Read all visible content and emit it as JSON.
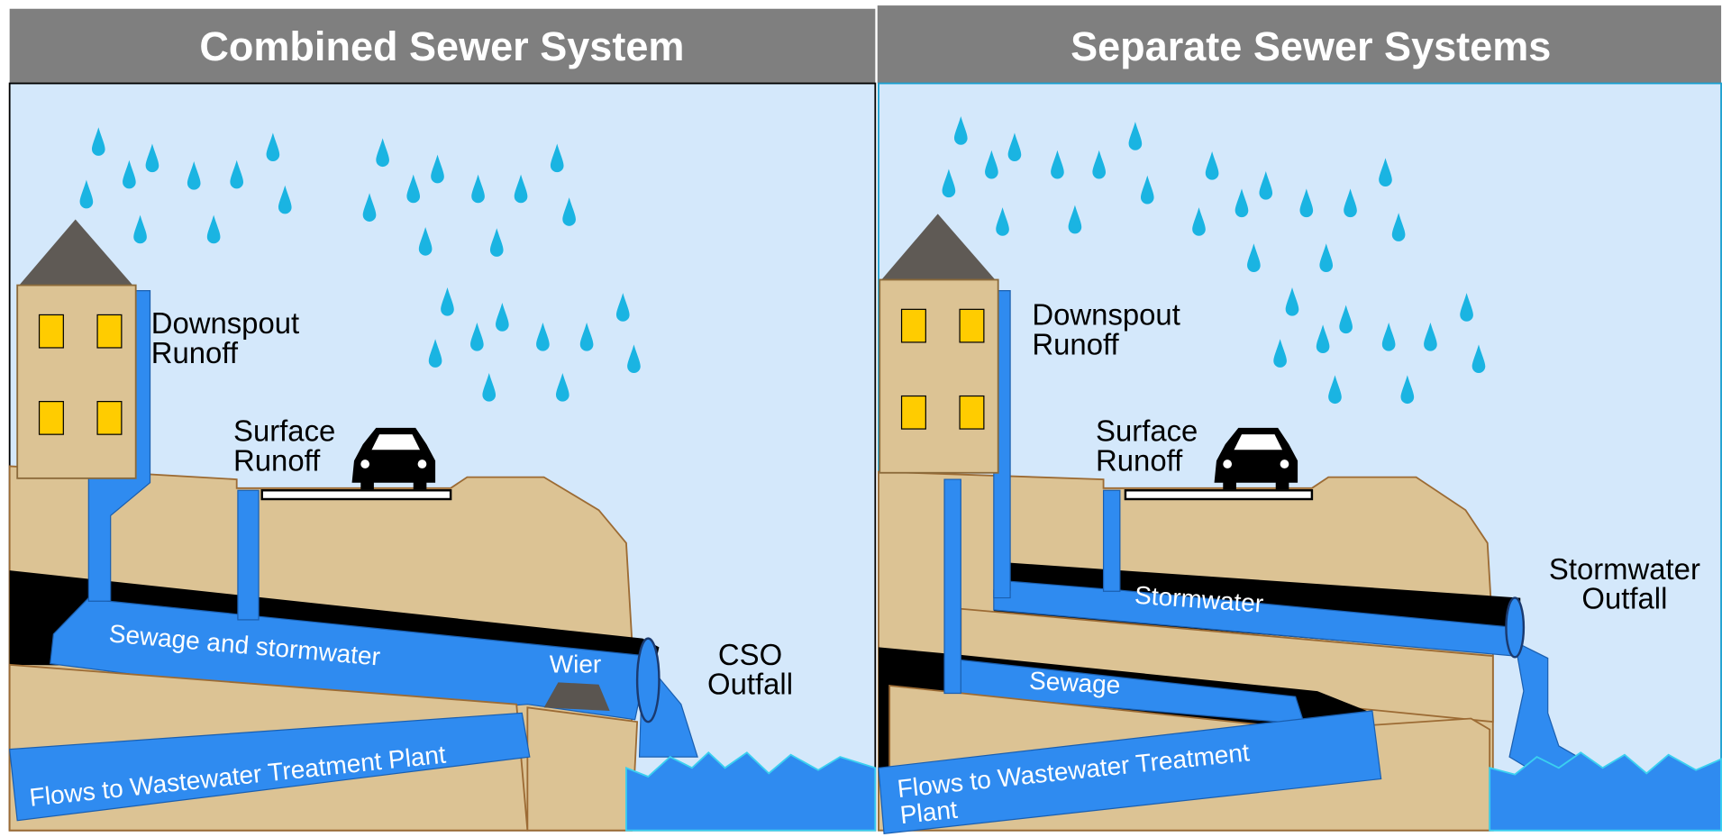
{
  "panels": [
    {
      "title": "Combined Sewer System",
      "labels": {
        "downspout": [
          "Downspout",
          "Runoff"
        ],
        "surface": [
          "Surface",
          "Runoff"
        ],
        "pipe": "Sewage  and stormwater",
        "weir": "Wier",
        "outfall": [
          "CSO",
          "Outfall"
        ],
        "treatment": [
          "Flows to Wastewater Treatment Plant"
        ]
      }
    },
    {
      "title": "Separate Sewer Systems",
      "labels": {
        "downspout": [
          "Downspout",
          "Runoff"
        ],
        "surface": [
          "Surface",
          "Runoff"
        ],
        "storm": "Stormwater",
        "sewage": "Sewage",
        "outfall": [
          "Stormwater",
          "Outfall"
        ],
        "treatment": [
          "Flows to Wastewater Treatment",
          "Plant"
        ]
      }
    }
  ]
}
